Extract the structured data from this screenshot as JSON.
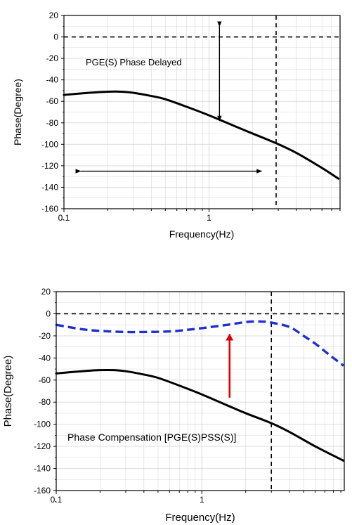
{
  "colors": {
    "axis": "#000000",
    "grid": "#d8d8d8",
    "black_curve": "#000000",
    "blue_curve": "#1f2fd0",
    "red_arrow": "#e00000"
  },
  "chart_data": [
    {
      "type": "line",
      "xlabel": "Frequency(Hz)",
      "ylabel": "Phase(Degree)",
      "x_scale": "log",
      "xlim": [
        0.1,
        8
      ],
      "ylim": [
        -160,
        20
      ],
      "x_ticks": [
        0.1,
        1
      ],
      "x_tick_labels": [
        "0.1",
        "1"
      ],
      "y_ticks": [
        20,
        0,
        -20,
        -40,
        -60,
        -80,
        -100,
        -120,
        -140,
        -160
      ],
      "y_tick_labels": [
        "20",
        "0",
        "-20",
        "-40",
        "-60",
        "-80",
        "-100",
        "-120",
        "-140",
        "-160"
      ],
      "grid": true,
      "annotation": "PGE(S) Phase Delayed",
      "series": [
        {
          "style": "solid",
          "color": "#000000",
          "x": [
            0.1,
            0.15,
            0.2,
            0.25,
            0.3,
            0.4,
            0.5,
            0.7,
            1.0,
            1.5,
            2.0,
            2.9,
            4.0,
            6.0,
            7.8
          ],
          "y": [
            -54,
            -52,
            -51,
            -51,
            -52,
            -55,
            -58,
            -65,
            -73,
            -83,
            -90,
            -99,
            -108,
            -122,
            -132
          ]
        }
      ],
      "reference_lines": {
        "horizontal_y": 0,
        "vertical_x": 2.9
      },
      "arrows": [
        {
          "direction": "vertical",
          "x": 1.18,
          "y_from": 10,
          "y_to": -78
        },
        {
          "direction": "horizontal",
          "y": -125,
          "x_from": 0.13,
          "x_to": 2.3
        }
      ]
    },
    {
      "type": "line",
      "xlabel": "Frequency(Hz)",
      "ylabel": "Phase(Degree)",
      "x_scale": "log",
      "xlim": [
        0.1,
        9.5
      ],
      "ylim": [
        -160,
        20
      ],
      "x_ticks": [
        0.1,
        1
      ],
      "x_tick_labels": [
        "0.1",
        "1"
      ],
      "y_ticks": [
        20,
        0,
        -20,
        -40,
        -60,
        -80,
        -100,
        -120,
        -140,
        -160
      ],
      "y_tick_labels": [
        "20",
        "0",
        "-20",
        "-40",
        "-60",
        "-80",
        "-100",
        "-120",
        "-140",
        "-160"
      ],
      "grid": true,
      "annotation": "Phase Compensation [PGE(S)PSS(S)]",
      "series": [
        {
          "style": "solid",
          "color": "#000000",
          "x": [
            0.1,
            0.15,
            0.2,
            0.25,
            0.3,
            0.4,
            0.5,
            0.7,
            1.0,
            1.5,
            2.0,
            3.0,
            4.0,
            6.0,
            9.4
          ],
          "y": [
            -54,
            -52,
            -51,
            -51,
            -52,
            -55,
            -58,
            -65,
            -73,
            -83,
            -90,
            -99,
            -107,
            -120,
            -133
          ]
        },
        {
          "style": "dashed",
          "color": "#1f2fd0",
          "x": [
            0.1,
            0.15,
            0.2,
            0.3,
            0.4,
            0.6,
            0.8,
            1.0,
            1.5,
            2.0,
            2.5,
            3.0,
            4.0,
            5.0,
            6.0,
            7.0,
            8.0,
            9.4
          ],
          "y": [
            -10,
            -14,
            -15.5,
            -16.5,
            -16.5,
            -16,
            -14.5,
            -13,
            -10,
            -7.5,
            -7,
            -8,
            -12,
            -20,
            -27,
            -34,
            -40,
            -47
          ]
        }
      ],
      "reference_lines": {
        "horizontal_y": 0,
        "vertical_x": 3.0
      },
      "arrows": [
        {
          "direction": "vertical",
          "color": "#e00000",
          "x": 1.55,
          "y_from": -76,
          "y_to": -16
        }
      ]
    }
  ]
}
